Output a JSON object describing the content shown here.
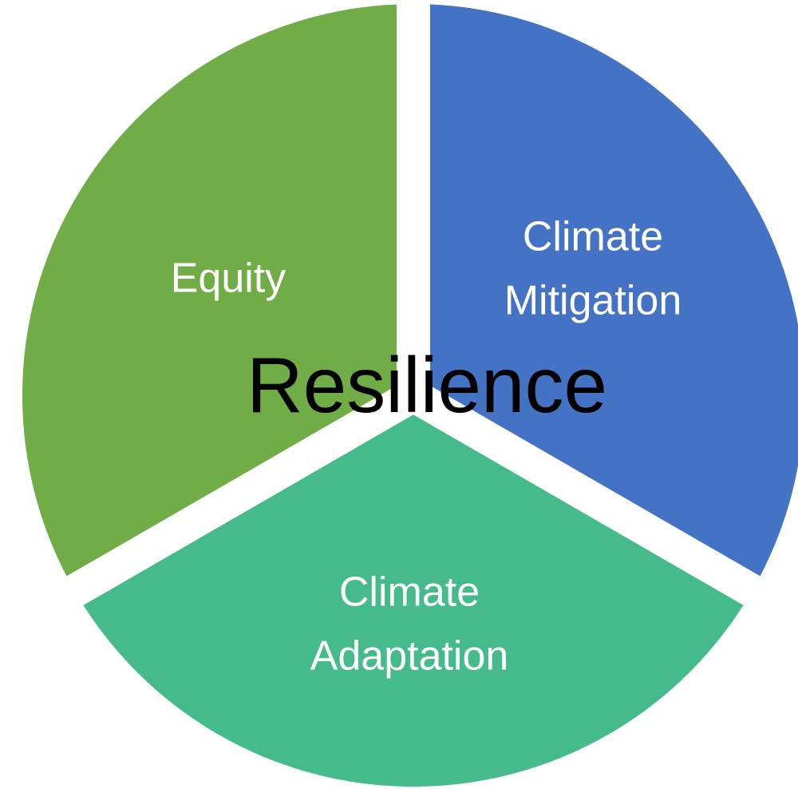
{
  "diagram": {
    "center_label": "Resilience",
    "segments": [
      {
        "label_lines": [
          "Climate",
          "Mitigation"
        ]
      },
      {
        "label_lines": [
          "Equity"
        ]
      },
      {
        "label_lines": [
          "Climate",
          "Adaptation"
        ]
      }
    ]
  }
}
